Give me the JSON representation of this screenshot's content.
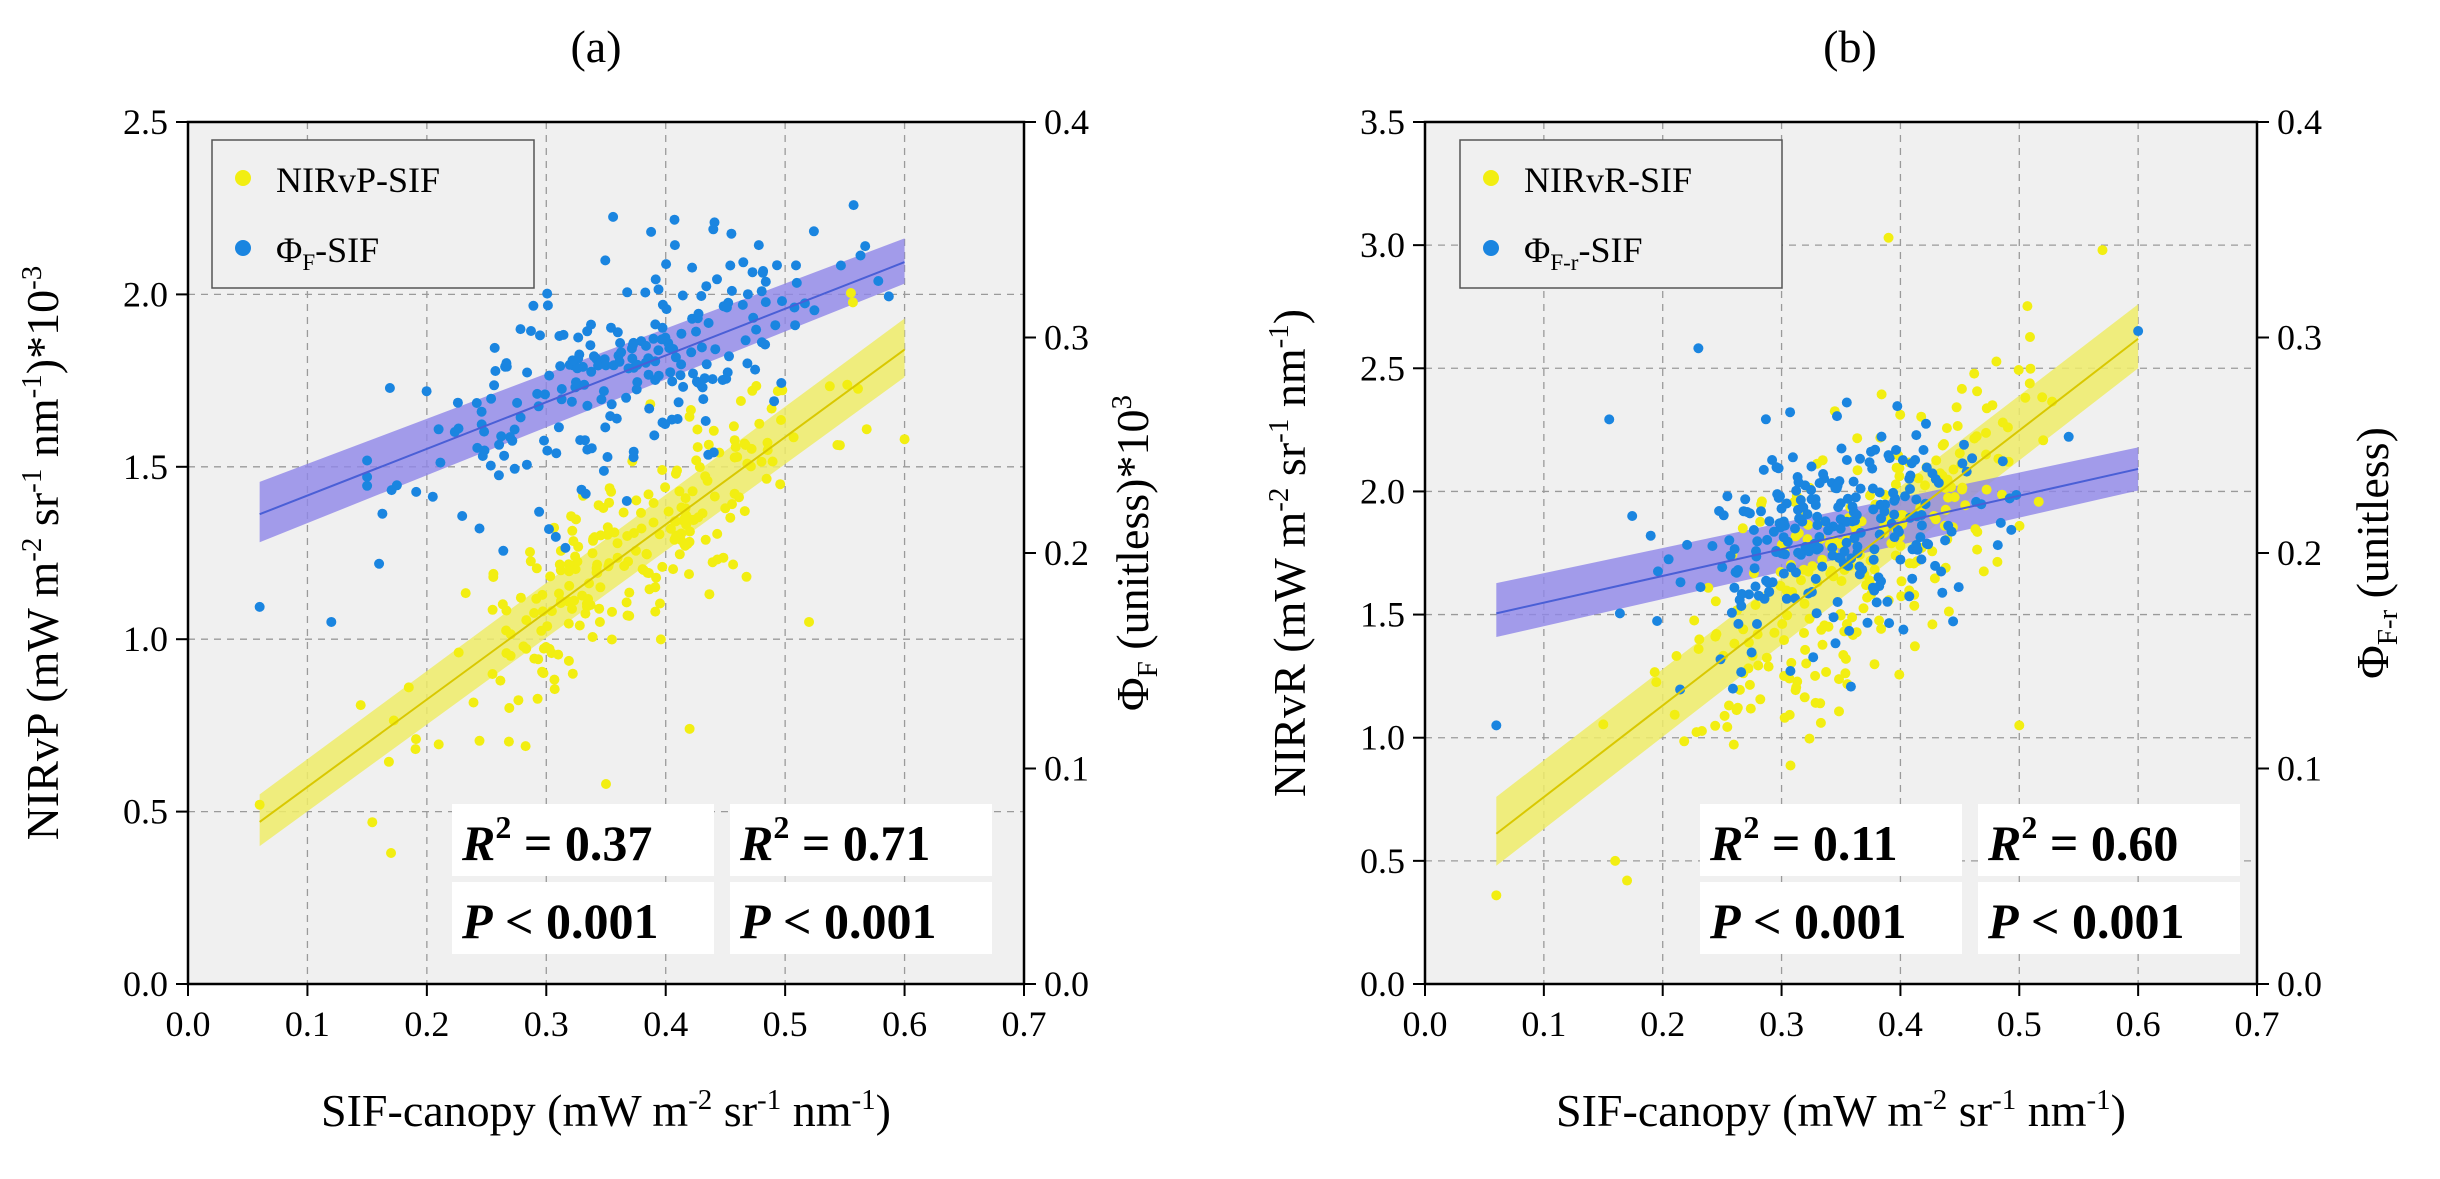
{
  "colors": {
    "yellow_points": "#f2ee12",
    "yellow_line": "#d9c800",
    "yellow_band": "#efec68",
    "blue_points": "#1a85e0",
    "blue_line": "#4a5fd6",
    "blue_band": "#8f86e8",
    "stat_blue": "#0a78ea",
    "stat_gold": "#f7c80a",
    "plot_bg": "#f0f0f0"
  },
  "chart_data": [
    {
      "type": "scatter",
      "panel_label": "(a)",
      "xlabel": {
        "main": "SIF-canopy (mW m",
        "e1": "-2",
        "m2": " sr",
        "e2": "-1",
        "m3": " nm",
        "e3": "-1",
        "end": ")"
      },
      "ylabel_left": {
        "main": "NIRvP (mW m",
        "e1": "-2",
        "m2": " sr",
        "e2": "-1",
        "m3": " nm",
        "e3": "-1",
        "end": ")*10",
        "e4": "-3"
      },
      "ylabel_right": {
        "phi": "Φ",
        "sub": "F",
        "rest": " (unitless)*10",
        "sup": "3"
      },
      "xlim": [
        0.0,
        0.7
      ],
      "ylim_left": [
        0.0,
        2.5
      ],
      "ylim_right": [
        0.0,
        0.4
      ],
      "x_ticks": [
        "0.0",
        "0.1",
        "0.2",
        "0.3",
        "0.4",
        "0.5",
        "0.6",
        "0.7"
      ],
      "y_left_ticks": [
        "0.0",
        "0.5",
        "1.0",
        "1.5",
        "2.0",
        "2.5"
      ],
      "y_right_ticks": [
        "0.0",
        "0.1",
        "0.2",
        "0.3",
        "0.4"
      ],
      "legend": [
        {
          "name": "NIRvP-SIF",
          "phi": "",
          "sub": "",
          "suffix": ""
        },
        {
          "name": "",
          "phi": "Φ",
          "sub": "F",
          "suffix": "-SIF"
        }
      ],
      "series": [
        {
          "name": "NIRvP-SIF",
          "axis": "left",
          "color": "yellow",
          "fit": {
            "x": [
              0.06,
              0.6
            ],
            "y": [
              0.47,
              1.84
            ]
          },
          "band": {
            "x": [
              0.06,
              0.6
            ],
            "lower": [
              0.4,
              1.76
            ],
            "upper": [
              0.55,
              1.93
            ]
          },
          "cloud": {
            "seed": 11,
            "n": 240,
            "xmin": 0.14,
            "xmax": 0.6,
            "xcenter": 0.37,
            "xspread": 0.08,
            "noise": 0.14
          }
        },
        {
          "name": "ΦF-SIF",
          "axis": "right",
          "color": "blue",
          "fit": {
            "x": [
              0.06,
              0.6
            ],
            "y": [
              0.218,
              0.335
            ]
          },
          "band": {
            "x": [
              0.06,
              0.6
            ],
            "lower": [
              0.205,
              0.325
            ],
            "upper": [
              0.233,
              0.346
            ]
          },
          "cloud": {
            "seed": 23,
            "n": 240,
            "xmin": 0.15,
            "xmax": 0.6,
            "xcenter": 0.36,
            "xspread": 0.09,
            "noise": 0.024
          }
        }
      ],
      "extra_points": [
        {
          "series": "blue",
          "x": 0.06,
          "y": 0.175
        },
        {
          "series": "blue",
          "x": 0.12,
          "y": 0.168
        },
        {
          "series": "blue",
          "x": 0.16,
          "y": 0.195
        },
        {
          "series": "yellow",
          "x": 0.06,
          "y": 0.52
        },
        {
          "series": "yellow",
          "x": 0.17,
          "y": 0.38
        },
        {
          "series": "yellow",
          "x": 0.35,
          "y": 0.58
        },
        {
          "series": "yellow",
          "x": 0.42,
          "y": 0.74
        },
        {
          "series": "yellow",
          "x": 0.52,
          "y": 1.05
        },
        {
          "series": "yellow",
          "x": 0.6,
          "y": 1.58
        }
      ],
      "stats": [
        {
          "r_label": "R",
          "r_sup": "2",
          "r_value": " = 0.37",
          "p_label": "P",
          "p_value": " < 0.001",
          "color": "blue"
        },
        {
          "r_label": "R",
          "r_sup": "2",
          "r_value": " = 0.71",
          "p_label": "P",
          "p_value": " < 0.001",
          "color": "gold"
        }
      ]
    },
    {
      "type": "scatter",
      "panel_label": "(b)",
      "xlabel": {
        "main": "SIF-canopy (mW m",
        "e1": "-2",
        "m2": " sr",
        "e2": "-1",
        "m3": " nm",
        "e3": "-1",
        "end": ")"
      },
      "ylabel_left": {
        "main": "NIRvR (mW m",
        "e1": "-2",
        "m2": " sr",
        "e2": "-1",
        "m3": " nm",
        "e3": "-1",
        "end": ")",
        "e4": ""
      },
      "ylabel_right": {
        "phi": "Φ",
        "sub": "F-r",
        "rest": " (unitless)",
        "sup": ""
      },
      "xlim": [
        0.0,
        0.7
      ],
      "ylim_left": [
        0.0,
        3.5
      ],
      "ylim_right": [
        0.0,
        0.4
      ],
      "x_ticks": [
        "0.0",
        "0.1",
        "0.2",
        "0.3",
        "0.4",
        "0.5",
        "0.6",
        "0.7"
      ],
      "y_left_ticks": [
        "0.0",
        "0.5",
        "1.0",
        "1.5",
        "2.0",
        "2.5",
        "3.0",
        "3.5"
      ],
      "y_right_ticks": [
        "0.0",
        "0.1",
        "0.2",
        "0.3",
        "0.4"
      ],
      "legend": [
        {
          "name": "NIRvR-SIF",
          "phi": "",
          "sub": "",
          "suffix": ""
        },
        {
          "name": "",
          "phi": "Φ",
          "sub": "F-r",
          "suffix": "-SIF"
        }
      ],
      "series": [
        {
          "name": "NIRvR-SIF",
          "axis": "left",
          "color": "yellow",
          "fit": {
            "x": [
              0.06,
              0.6
            ],
            "y": [
              0.61,
              2.62
            ]
          },
          "band": {
            "x": [
              0.06,
              0.6
            ],
            "lower": [
              0.48,
              2.5
            ],
            "upper": [
              0.76,
              2.76
            ]
          },
          "cloud": {
            "seed": 37,
            "n": 260,
            "xmin": 0.15,
            "xmax": 0.6,
            "xcenter": 0.36,
            "xspread": 0.07,
            "noise": 0.27
          }
        },
        {
          "name": "ΦF-r-SIF",
          "axis": "right",
          "color": "blue",
          "fit": {
            "x": [
              0.06,
              0.6
            ],
            "y": [
              0.172,
              0.239
            ]
          },
          "band": {
            "x": [
              0.06,
              0.6
            ],
            "lower": [
              0.161,
              0.229
            ],
            "upper": [
              0.186,
              0.249
            ]
          },
          "cloud": {
            "seed": 53,
            "n": 260,
            "xmin": 0.16,
            "xmax": 0.6,
            "xcenter": 0.35,
            "xspread": 0.07,
            "noise": 0.025
          }
        }
      ],
      "extra_points": [
        {
          "series": "blue",
          "x": 0.06,
          "y": 0.12
        },
        {
          "series": "blue",
          "x": 0.155,
          "y": 0.262
        },
        {
          "series": "blue",
          "x": 0.23,
          "y": 0.295
        },
        {
          "series": "blue",
          "x": 0.6,
          "y": 0.303
        },
        {
          "series": "yellow",
          "x": 0.06,
          "y": 0.36
        },
        {
          "series": "yellow",
          "x": 0.16,
          "y": 0.5
        },
        {
          "series": "yellow",
          "x": 0.17,
          "y": 0.42
        },
        {
          "series": "yellow",
          "x": 0.39,
          "y": 3.03
        },
        {
          "series": "yellow",
          "x": 0.57,
          "y": 2.98
        },
        {
          "series": "yellow",
          "x": 0.5,
          "y": 1.05
        }
      ],
      "stats": [
        {
          "r_label": "R",
          "r_sup": "2",
          "r_value": " = 0.11",
          "p_label": "P",
          "p_value": " < 0.001",
          "color": "blue"
        },
        {
          "r_label": "R",
          "r_sup": "2",
          "r_value": " = 0.60",
          "p_label": "P",
          "p_value": " < 0.001",
          "color": "gold"
        }
      ]
    }
  ]
}
